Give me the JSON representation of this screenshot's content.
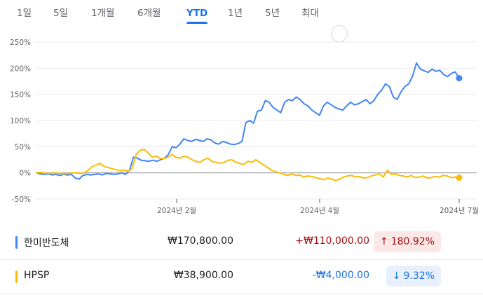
{
  "tabs": [
    {
      "label": "1일"
    },
    {
      "label": "5일"
    },
    {
      "label": "1개월"
    },
    {
      "label": "6개월"
    },
    {
      "label": "YTD",
      "active": true
    },
    {
      "label": "1년"
    },
    {
      "label": "5년"
    },
    {
      "label": "최대"
    }
  ],
  "chart_data": {
    "type": "line",
    "y_ticks": [
      "250%",
      "200%",
      "150%",
      "100%",
      "50%",
      "0%",
      "-50%"
    ],
    "ylim": [
      -50,
      250
    ],
    "x_ticks": [
      "2024년 2월",
      "2024년 4월",
      "2024년 7월"
    ],
    "grid": true,
    "series": [
      {
        "name": "한미반도체",
        "color": "#4285f4",
        "values": [
          0,
          -2,
          -3,
          -2,
          -4,
          -3,
          -5,
          -3,
          -4,
          -3,
          -10,
          -12,
          -5,
          -3,
          -4,
          -3,
          -2,
          -4,
          -1,
          -2,
          -3,
          -2,
          0,
          -3,
          5,
          30,
          28,
          24,
          23,
          22,
          24,
          22,
          25,
          28,
          35,
          50,
          48,
          55,
          65,
          62,
          60,
          64,
          62,
          60,
          65,
          63,
          57,
          55,
          60,
          58,
          55,
          54,
          56,
          60,
          96,
          100,
          95,
          118,
          120,
          138,
          135,
          125,
          120,
          115,
          135,
          140,
          138,
          145,
          140,
          132,
          128,
          120,
          115,
          110,
          128,
          135,
          130,
          125,
          122,
          120,
          128,
          135,
          130,
          132,
          136,
          140,
          132,
          138,
          150,
          158,
          170,
          165,
          145,
          140,
          155,
          165,
          170,
          185,
          210,
          198,
          195,
          192,
          198,
          194,
          196,
          188,
          184,
          190,
          193,
          180.92
        ]
      },
      {
        "name": "HPSP",
        "color": "#fbbc04",
        "values": [
          0,
          1,
          0,
          -1,
          -1,
          0,
          -1,
          -2,
          -1,
          0,
          0,
          -1,
          0,
          5,
          12,
          15,
          18,
          12,
          10,
          8,
          6,
          4,
          5,
          3,
          8,
          35,
          43,
          45,
          38,
          30,
          32,
          28,
          27,
          30,
          35,
          30,
          28,
          32,
          30,
          25,
          22,
          20,
          25,
          28,
          22,
          20,
          18,
          20,
          24,
          25,
          20,
          18,
          16,
          22,
          20,
          25,
          20,
          15,
          10,
          5,
          2,
          0,
          -3,
          -5,
          -2,
          -5,
          -4,
          -8,
          -6,
          -7,
          -9,
          -11,
          -13,
          -10,
          -12,
          -15,
          -12,
          -8,
          -6,
          -5,
          -8,
          -7,
          -10,
          -9,
          -6,
          -4,
          -2,
          -8,
          5,
          -3,
          -2,
          -5,
          -6,
          -8,
          -5,
          -9,
          -8,
          -6,
          -10,
          -9,
          -7,
          -8,
          -5,
          -6,
          -9,
          -8,
          -9.32
        ]
      }
    ]
  },
  "rows": [
    {
      "name": "한미반도체",
      "color": "#4285f4",
      "price": "₩170,800.00",
      "change": "+₩110,000.00",
      "change_color": "#a50e0e",
      "pct_arrow": "↑",
      "pct": "180.92%",
      "pct_bg": "#fce8e6",
      "pct_color": "#a50e0e"
    },
    {
      "name": "HPSP",
      "color": "#fbbc04",
      "price": "₩38,900.00",
      "change": "-₩4,000.00",
      "change_color": "#1a73e8",
      "pct_arrow": "↓",
      "pct": "9.32%",
      "pct_bg": "#e8f0fe",
      "pct_color": "#1a73e8"
    }
  ]
}
